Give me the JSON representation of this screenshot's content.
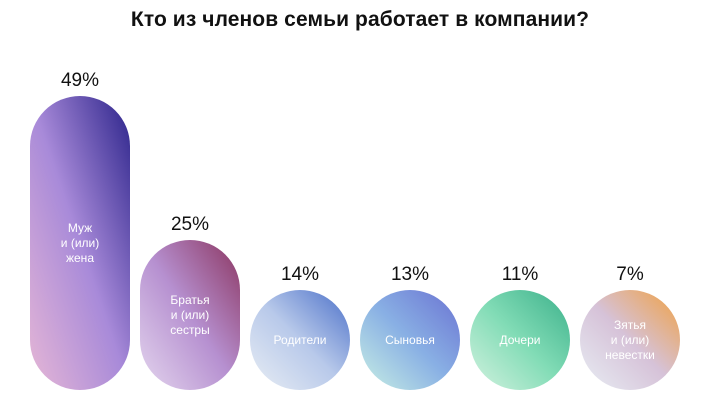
{
  "chart_data": {
    "type": "bar",
    "title": "Кто из членов семьи работает в компании?",
    "categories": [
      [
        "Муж",
        "и (или)",
        "жена"
      ],
      [
        "Братья",
        "и (или)",
        "сестры"
      ],
      [
        "Родители"
      ],
      [
        "Сыновья"
      ],
      [
        "Дочери"
      ],
      [
        "Зятья",
        "и (или)",
        "невестки"
      ]
    ],
    "values": [
      49,
      25,
      14,
      13,
      11,
      7
    ],
    "value_labels": [
      "49%",
      "25%",
      "14%",
      "13%",
      "11%",
      "7%"
    ],
    "value_suffix": "%",
    "ylim": [
      0,
      50
    ],
    "grid": false,
    "legend": "none",
    "colors": [
      [
        "#e6b7d6",
        "#a88ad9",
        "#2b238a"
      ],
      [
        "#e4d6ee",
        "#b690d0",
        "#8b3560"
      ],
      [
        "#e9eef4",
        "#b8c9ea",
        "#4a6fc8"
      ],
      [
        "#c9f0e4",
        "#89b0e4",
        "#6a72d2"
      ],
      [
        "#d4f2e0",
        "#82dcb6",
        "#3bb08a"
      ],
      [
        "#e8eef4",
        "#d6c2d8",
        "#f0a040"
      ]
    ]
  }
}
